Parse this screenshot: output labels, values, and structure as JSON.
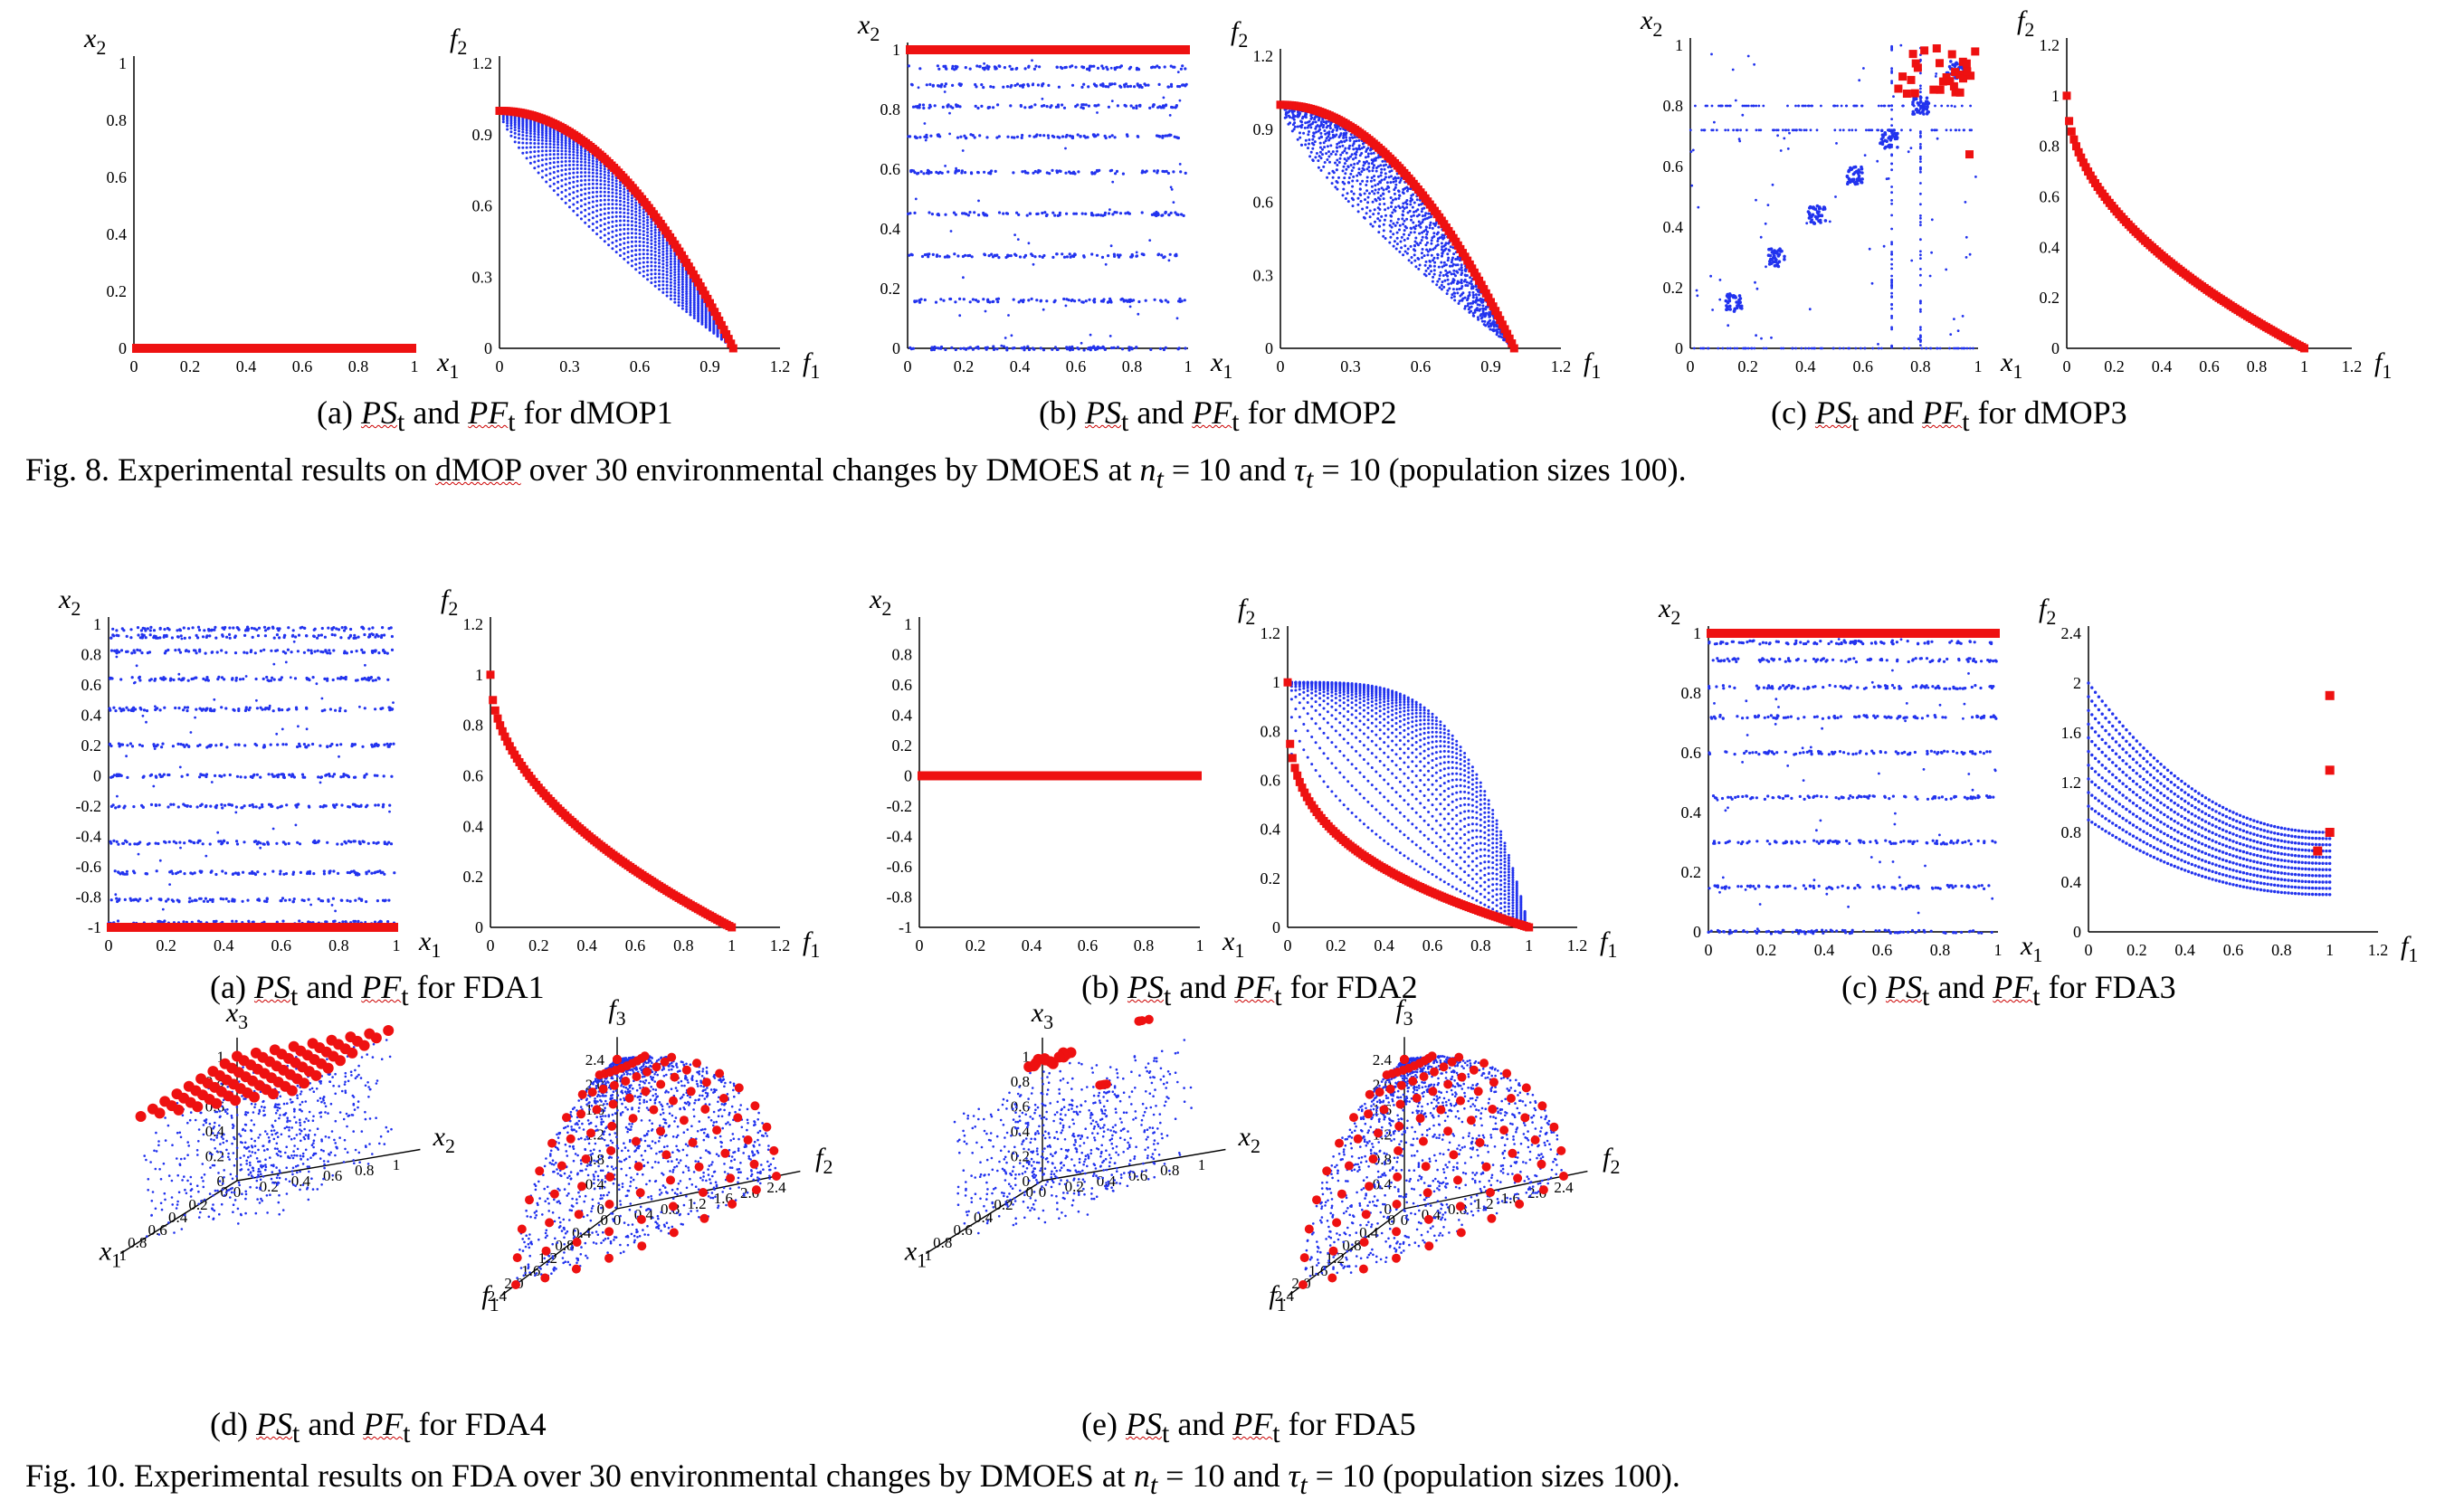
{
  "figure8": {
    "caption_pre": "Fig. 8. Experimental results on ",
    "caption_link": "dMOP",
    "caption_post": " over 30 environmental changes by DMOES at ",
    "caption_nt": "n",
    "caption_nt_sub": "t",
    "caption_eq1": " = 10 and ",
    "caption_tau": "τ",
    "caption_tau_sub": "t",
    "caption_eq2": " = 10 (population sizes 100).",
    "subcaptions": [
      {
        "prefix": "(a) ",
        "ps": "PS",
        "ps_sub": "t",
        "and": " and ",
        "pf": "PF",
        "pf_sub": "t",
        "suffix": " for dMOP1"
      },
      {
        "prefix": "(b) ",
        "ps": "PS",
        "ps_sub": "t",
        "and": " and ",
        "pf": "PF",
        "pf_sub": "t",
        "suffix": " for dMOP2"
      },
      {
        "prefix": "(c) ",
        "ps": "PS",
        "ps_sub": "t",
        "and": " and ",
        "pf": "PF",
        "pf_sub": "t",
        "suffix": " for dMOP3"
      }
    ]
  },
  "figure10": {
    "caption_pre": "Fig. 10. Experimental results on FDA over 30 environmental changes by DMOES at ",
    "caption_nt": "n",
    "caption_nt_sub": "t",
    "caption_eq1": " = 10 and ",
    "caption_tau": "τ",
    "caption_tau_sub": "t",
    "caption_eq2": " = 10 (population sizes 100).",
    "subcaptions": [
      {
        "prefix": "(a) ",
        "ps": "PS",
        "ps_sub": "t",
        "and": " and ",
        "pf": "PF",
        "pf_sub": "t",
        "suffix": " for FDA1"
      },
      {
        "prefix": "(b) ",
        "ps": "PS",
        "ps_sub": "t",
        "and": " and ",
        "pf": "PF",
        "pf_sub": "t",
        "suffix": " for FDA2"
      },
      {
        "prefix": "(c) ",
        "ps": "PS",
        "ps_sub": "t",
        "and": " and ",
        "pf": "PF",
        "pf_sub": "t",
        "suffix": " for FDA3"
      },
      {
        "prefix": "(d) ",
        "ps": "PS",
        "ps_sub": "t",
        "and": " and ",
        "pf": "PF",
        "pf_sub": "t",
        "suffix": " for FDA4"
      },
      {
        "prefix": "(e) ",
        "ps": "PS",
        "ps_sub": "t",
        "and": " and ",
        "pf": "PF",
        "pf_sub": "t",
        "suffix": " for FDA5"
      }
    ]
  },
  "colors": {
    "population": "#2233ee",
    "final": "#ee1111",
    "axis": "#000000"
  },
  "chart_data": [
    {
      "id": "dmop1_ps",
      "type": "scatter",
      "xlabel": "x 1",
      "ylabel": "x 2",
      "xlim": [
        0,
        1
      ],
      "ylim": [
        0,
        1
      ],
      "xticks": [
        "0",
        "0.2",
        "0.4",
        "0.6",
        "0.8",
        "1"
      ],
      "yticks": [
        "0",
        "0.2",
        "0.4",
        "0.6",
        "0.8",
        "1"
      ],
      "series": [
        {
          "color": "final",
          "pattern": "hline",
          "x": [
            0,
            1
          ],
          "y": 0
        }
      ]
    },
    {
      "id": "dmop1_pf",
      "type": "scatter",
      "xlabel": "f 1",
      "ylabel": "f 2",
      "xlim": [
        0,
        1.2
      ],
      "ylim": [
        0,
        1.2
      ],
      "xticks": [
        "0",
        "0.3",
        "0.6",
        "0.9",
        "1.2"
      ],
      "yticks": [
        "0",
        "0.3",
        "0.6",
        "0.9",
        "1.2"
      ],
      "series": [
        {
          "color": "population",
          "pattern": "front-family",
          "x": [
            0,
            1
          ],
          "H_range": [
            0.75,
            2.0
          ]
        },
        {
          "color": "final",
          "pattern": "front",
          "x": [
            0,
            1
          ],
          "H": 2.0
        }
      ]
    },
    {
      "id": "dmop2_ps",
      "type": "scatter",
      "xlabel": "x 1",
      "ylabel": "x 2",
      "xlim": [
        0,
        1
      ],
      "ylim": [
        0,
        1
      ],
      "xticks": [
        "0",
        "0.2",
        "0.4",
        "0.6",
        "0.8",
        "1"
      ],
      "yticks": [
        "0",
        "0.2",
        "0.4",
        "0.6",
        "0.8",
        "1"
      ],
      "series": [
        {
          "color": "population",
          "pattern": "hlines",
          "y": [
            0.0,
            0.16,
            0.31,
            0.45,
            0.59,
            0.71,
            0.81,
            0.88,
            0.94
          ]
        },
        {
          "color": "final",
          "pattern": "hline",
          "x": [
            0,
            1
          ],
          "y": 1.0
        }
      ]
    },
    {
      "id": "dmop2_pf",
      "type": "scatter",
      "xlabel": "f 1",
      "ylabel": "f 2",
      "xlim": [
        0,
        1.2
      ],
      "ylim": [
        0,
        1.2
      ],
      "xticks": [
        "0",
        "0.3",
        "0.6",
        "0.9",
        "1.2"
      ],
      "yticks": [
        "0",
        "0.3",
        "0.6",
        "0.9",
        "1.2"
      ],
      "series": [
        {
          "color": "population",
          "pattern": "front-cloud",
          "x": [
            0,
            1
          ],
          "H_range": [
            0.75,
            2.0
          ]
        },
        {
          "color": "final",
          "pattern": "front",
          "x": [
            0,
            1
          ],
          "H": 2.0
        }
      ]
    },
    {
      "id": "dmop3_ps",
      "type": "scatter",
      "xlabel": "x 1",
      "ylabel": "x 2",
      "xlim": [
        0,
        1
      ],
      "ylim": [
        0,
        1
      ],
      "xticks": [
        "0",
        "0.2",
        "0.4",
        "0.6",
        "0.8",
        "1"
      ],
      "yticks": [
        "0",
        "0.2",
        "0.4",
        "0.6",
        "0.8",
        "1"
      ],
      "series": [
        {
          "color": "population",
          "pattern": "diagonal-clusters",
          "centers": [
            0.15,
            0.3,
            0.44,
            0.57,
            0.69,
            0.8,
            0.92
          ]
        },
        {
          "color": "final",
          "pattern": "corner-cluster",
          "center": [
            0.92,
            0.95
          ]
        }
      ]
    },
    {
      "id": "dmop3_pf",
      "type": "scatter",
      "xlabel": "f 1",
      "ylabel": "f 2",
      "xlim": [
        0,
        1.2
      ],
      "ylim": [
        0,
        1.2
      ],
      "xticks": [
        "0",
        "0.2",
        "0.4",
        "0.6",
        "0.8",
        "1",
        "1.2"
      ],
      "yticks": [
        "0",
        "0.2",
        "0.4",
        "0.6",
        "0.8",
        "1",
        "1.2"
      ],
      "series": [
        {
          "color": "final",
          "pattern": "front",
          "x": [
            0,
            1
          ],
          "H": 0.5
        }
      ]
    },
    {
      "id": "fda1_ps",
      "type": "scatter",
      "xlabel": "x 1",
      "ylabel": "x 2",
      "xlim": [
        0,
        1
      ],
      "ylim": [
        -1,
        1
      ],
      "xticks": [
        "0",
        "0.2",
        "0.4",
        "0.6",
        "0.8",
        "1"
      ],
      "yticks": [
        "-1",
        "-0.8",
        "-0.6",
        "-0.4",
        "-0.2",
        "0",
        "0.2",
        "0.4",
        "0.6",
        "0.8",
        "1"
      ],
      "series": [
        {
          "color": "population",
          "pattern": "hlines",
          "y": [
            -0.97,
            -0.82,
            -0.64,
            -0.44,
            -0.2,
            0.0,
            0.2,
            0.44,
            0.64,
            0.82,
            0.92,
            0.97
          ]
        },
        {
          "color": "final",
          "pattern": "hline",
          "x": [
            0,
            1
          ],
          "y": -1.0
        }
      ]
    },
    {
      "id": "fda1_pf",
      "type": "scatter",
      "xlabel": "f 1",
      "ylabel": "f 2",
      "xlim": [
        0,
        1.2
      ],
      "ylim": [
        0,
        1.2
      ],
      "xticks": [
        "0",
        "0.2",
        "0.4",
        "0.6",
        "0.8",
        "1",
        "1.2"
      ],
      "yticks": [
        "0",
        "0.2",
        "0.4",
        "0.6",
        "0.8",
        "1",
        "1.2"
      ],
      "series": [
        {
          "color": "final",
          "pattern": "front",
          "x": [
            0,
            1
          ],
          "H": 0.5
        }
      ]
    },
    {
      "id": "fda2_ps",
      "type": "scatter",
      "xlabel": "x 1",
      "ylabel": "x 2",
      "xlim": [
        0,
        1
      ],
      "ylim": [
        -1,
        1
      ],
      "xticks": [
        "0",
        "0.2",
        "0.4",
        "0.6",
        "0.8",
        "1"
      ],
      "yticks": [
        "-1",
        "-0.8",
        "-0.6",
        "-0.4",
        "-0.2",
        "0",
        "0.2",
        "0.4",
        "0.6",
        "0.8",
        "1"
      ],
      "series": [
        {
          "color": "final",
          "pattern": "hline",
          "x": [
            0,
            1
          ],
          "y": 0.0
        }
      ]
    },
    {
      "id": "fda2_pf",
      "type": "scatter",
      "xlabel": "f 1",
      "ylabel": "f 2",
      "xlim": [
        0,
        1.2
      ],
      "ylim": [
        0,
        1.2
      ],
      "xticks": [
        "0",
        "0.2",
        "0.4",
        "0.6",
        "0.8",
        "1",
        "1.2"
      ],
      "yticks": [
        "0",
        "0.2",
        "0.4",
        "0.6",
        "0.8",
        "1",
        "1.2"
      ],
      "series": [
        {
          "color": "population",
          "pattern": "front-family",
          "x": [
            0,
            1
          ],
          "H_range": [
            0.3,
            4.0
          ]
        },
        {
          "color": "final",
          "pattern": "front",
          "x": [
            0,
            1
          ],
          "H": 0.3
        }
      ]
    },
    {
      "id": "fda3_ps",
      "type": "scatter",
      "xlabel": "x 1",
      "ylabel": "x 2",
      "xlim": [
        0,
        1
      ],
      "ylim": [
        0,
        1
      ],
      "xticks": [
        "0",
        "0.2",
        "0.4",
        "0.6",
        "0.8",
        "1"
      ],
      "yticks": [
        "0",
        "0.2",
        "0.4",
        "0.6",
        "0.8",
        "1"
      ],
      "series": [
        {
          "color": "population",
          "pattern": "hlines",
          "y": [
            0.0,
            0.15,
            0.3,
            0.45,
            0.6,
            0.72,
            0.82,
            0.91,
            0.97
          ]
        },
        {
          "color": "final",
          "pattern": "hline",
          "x": [
            0,
            1
          ],
          "y": 1.0
        }
      ]
    },
    {
      "id": "fda3_pf",
      "type": "scatter",
      "xlabel": "f 1",
      "ylabel": "f 2",
      "xlim": [
        0,
        1.2
      ],
      "ylim": [
        0,
        2.4
      ],
      "xticks": [
        "0",
        "0.2",
        "0.4",
        "0.6",
        "0.8",
        "1",
        "1.2"
      ],
      "yticks": [
        "0",
        "0.4",
        "0.8",
        "1.2",
        "1.6",
        "2",
        "2.4"
      ],
      "series": [
        {
          "color": "population",
          "pattern": "curve-family",
          "x": [
            0,
            1
          ],
          "y_start": [
            0.9,
            2.0
          ],
          "y_end": [
            0.3,
            0.8
          ]
        },
        {
          "color": "final",
          "pattern": "points",
          "x": [
            1,
            1,
            1,
            0.95
          ],
          "y": [
            1.9,
            1.3,
            0.8,
            0.65
          ]
        }
      ]
    },
    {
      "id": "fda4_ps",
      "type": "scatter3d",
      "xlabel": "x 1",
      "ylabel": "x 2",
      "zlabel": "x 3",
      "ticks": [
        "0",
        "0.2",
        "0.4",
        "0.6",
        "0.8",
        "1"
      ],
      "series": [
        {
          "color": "population",
          "pattern": "cube-cloud"
        },
        {
          "color": "final",
          "pattern": "top-grid",
          "z": 1.0
        }
      ]
    },
    {
      "id": "fda4_pf",
      "type": "scatter3d",
      "xlabel": "f 1",
      "ylabel": "f 2",
      "zlabel": "f 3",
      "ticks": [
        "0",
        "0.4",
        "0.8",
        "1.2",
        "1.6",
        "2.0",
        "2.4"
      ],
      "series": [
        {
          "color": "population",
          "pattern": "sphere-shell",
          "r": 1.0
        },
        {
          "color": "final",
          "pattern": "sphere-grid",
          "r": 1.0
        }
      ]
    },
    {
      "id": "fda5_ps",
      "type": "scatter3d",
      "xlabel": "x 1",
      "ylabel": "x 2",
      "zlabel": "x 3",
      "ticks": [
        "0",
        "0.2",
        "0.4",
        "0.6",
        "0.8",
        "1"
      ],
      "series": [
        {
          "color": "population",
          "pattern": "cube-cloud"
        },
        {
          "color": "final",
          "pattern": "clusters"
        }
      ]
    },
    {
      "id": "fda5_pf",
      "type": "scatter3d",
      "xlabel": "f 1",
      "ylabel": "f 2",
      "zlabel": "f 3",
      "ticks": [
        "0",
        "0.4",
        "0.8",
        "1.2",
        "1.6",
        "2.0",
        "2.4"
      ],
      "series": [
        {
          "color": "population",
          "pattern": "sphere-shell",
          "r": 1.0
        },
        {
          "color": "final",
          "pattern": "sphere-grid",
          "r": 1.0
        }
      ]
    }
  ]
}
